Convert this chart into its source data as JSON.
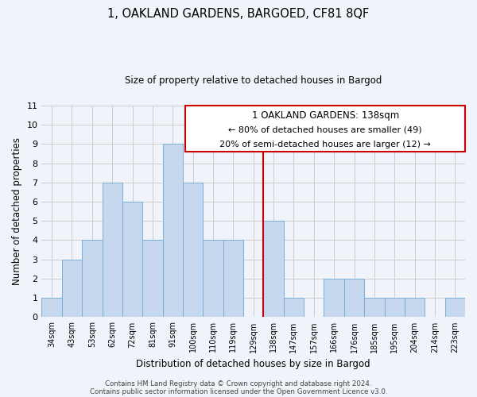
{
  "title": "1, OAKLAND GARDENS, BARGOED, CF81 8QF",
  "subtitle": "Size of property relative to detached houses in Bargod",
  "xlabel": "Distribution of detached houses by size in Bargod",
  "ylabel": "Number of detached properties",
  "bar_labels": [
    "34sqm",
    "43sqm",
    "53sqm",
    "62sqm",
    "72sqm",
    "81sqm",
    "91sqm",
    "100sqm",
    "110sqm",
    "119sqm",
    "129sqm",
    "138sqm",
    "147sqm",
    "157sqm",
    "166sqm",
    "176sqm",
    "185sqm",
    "195sqm",
    "204sqm",
    "214sqm",
    "223sqm"
  ],
  "bar_values": [
    1,
    3,
    4,
    7,
    6,
    4,
    9,
    7,
    4,
    4,
    0,
    5,
    1,
    0,
    2,
    2,
    1,
    1,
    1,
    0,
    1
  ],
  "bar_color": "#c5d8ee",
  "bar_edge_color": "#7bafd4",
  "vline_color": "#cc0000",
  "ylim": [
    0,
    11
  ],
  "yticks": [
    0,
    1,
    2,
    3,
    4,
    5,
    6,
    7,
    8,
    9,
    10,
    11
  ],
  "annotation_title": "1 OAKLAND GARDENS: 138sqm",
  "annotation_line1": "← 80% of detached houses are smaller (49)",
  "annotation_line2": "20% of semi-detached houses are larger (12) →",
  "footer1": "Contains HM Land Registry data © Crown copyright and database right 2024.",
  "footer2": "Contains public sector information licensed under the Open Government Licence v3.0.",
  "grid_color": "#cccccc",
  "background_color": "#f0f4fa"
}
